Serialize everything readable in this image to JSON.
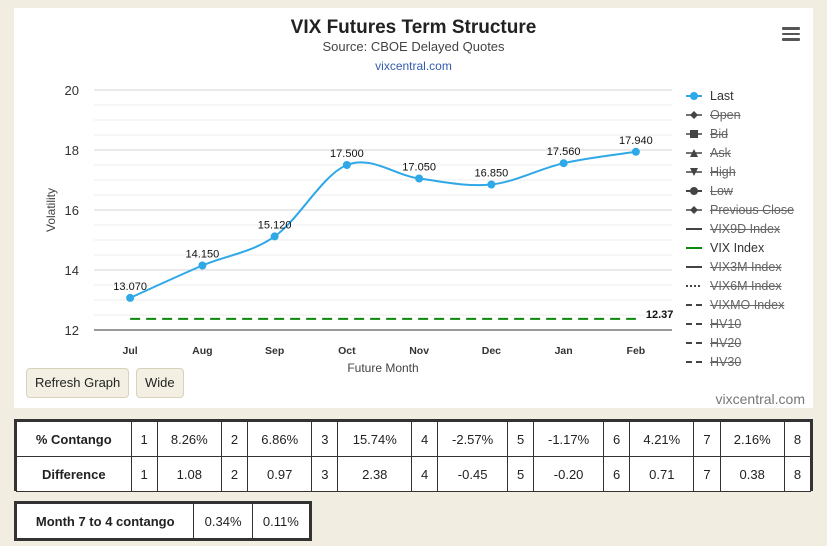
{
  "header": {
    "title": "VIX Futures Term Structure",
    "subtitle": "Source: CBOE Delayed Quotes",
    "link": "vixcentral.com"
  },
  "chart_data": {
    "type": "line",
    "title": "VIX Futures Term Structure",
    "subtitle": "Source: CBOE Delayed Quotes",
    "xlabel": "Future Month",
    "ylabel": "Volatility",
    "categories": [
      "Jul",
      "Aug",
      "Sep",
      "Oct",
      "Nov",
      "Dec",
      "Jan",
      "Feb"
    ],
    "ylim": [
      12,
      20
    ],
    "yticks": [
      12,
      14,
      16,
      18,
      20
    ],
    "grid": true,
    "legend_position": "right",
    "series": [
      {
        "name": "Last",
        "values": [
          13.07,
          14.15,
          15.12,
          17.5,
          17.05,
          16.85,
          17.56,
          17.94
        ],
        "labels": [
          "13.070",
          "14.150",
          "15.120",
          "17.500",
          "17.050",
          "16.850",
          "17.560",
          "17.940"
        ],
        "color": "#2ea8e6"
      },
      {
        "name": "VIX Index",
        "values": [
          12.37,
          12.37,
          12.37,
          12.37,
          12.37,
          12.37,
          12.37,
          12.37
        ],
        "end_label": "12.37",
        "color": "#0a8a0a",
        "dashed": true
      }
    ]
  },
  "legend": [
    {
      "name": "Last",
      "symbol": "circle",
      "enabled": true
    },
    {
      "name": "Open",
      "symbol": "diamond",
      "enabled": false
    },
    {
      "name": "Bid",
      "symbol": "square",
      "enabled": false
    },
    {
      "name": "Ask",
      "symbol": "triangle",
      "enabled": false
    },
    {
      "name": "High",
      "symbol": "triangle-down",
      "enabled": false
    },
    {
      "name": "Low",
      "symbol": "circle",
      "enabled": false
    },
    {
      "name": "Previous Close",
      "symbol": "diamond",
      "enabled": false
    },
    {
      "name": "VIX9D Index",
      "symbol": "line",
      "enabled": false
    },
    {
      "name": "VIX Index",
      "symbol": "line-green",
      "enabled": true
    },
    {
      "name": "VIX3M Index",
      "symbol": "line",
      "enabled": false
    },
    {
      "name": "VIX6M Index",
      "symbol": "dotted",
      "enabled": false
    },
    {
      "name": "VIXMO Index",
      "symbol": "dashed",
      "enabled": false
    },
    {
      "name": "HV10",
      "symbol": "dashed",
      "enabled": false
    },
    {
      "name": "HV20",
      "symbol": "dashed",
      "enabled": false
    },
    {
      "name": "HV30",
      "symbol": "dashed",
      "enabled": false
    }
  ],
  "buttons": {
    "refresh": "Refresh Graph",
    "wide": "Wide"
  },
  "credit": "vixcentral.com",
  "contango_table": {
    "rows": [
      {
        "label": "% Contango",
        "cells": [
          "1",
          "8.26%",
          "2",
          "6.86%",
          "3",
          "15.74%",
          "4",
          "-2.57%",
          "5",
          "-1.17%",
          "6",
          "4.21%",
          "7",
          "2.16%",
          "8"
        ]
      },
      {
        "label": "Difference",
        "cells": [
          "1",
          "1.08",
          "2",
          "0.97",
          "3",
          "2.38",
          "4",
          "-0.45",
          "5",
          "-0.20",
          "6",
          "0.71",
          "7",
          "0.38",
          "8"
        ]
      }
    ]
  },
  "month_table": {
    "label": "Month 7 to 4 contango",
    "values": [
      "0.34%",
      "0.11%"
    ]
  }
}
